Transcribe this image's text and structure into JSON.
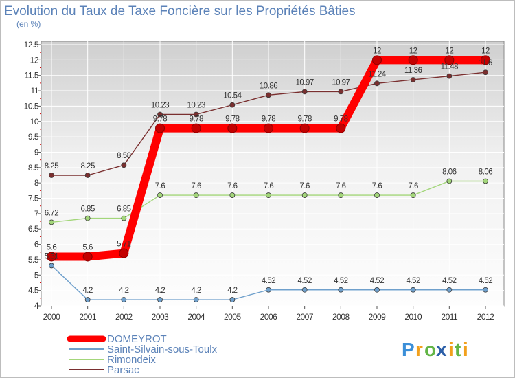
{
  "chart_data": {
    "type": "line",
    "title": "Evolution du Taux de Taxe Foncière sur les Propriétés Bâties",
    "subtitle": "(en %)",
    "x": [
      "2000",
      "2001",
      "2002",
      "2003",
      "2004",
      "2005",
      "2006",
      "2007",
      "2008",
      "2009",
      "2010",
      "2011",
      "2012"
    ],
    "y_ticks": [
      "4",
      "4.5",
      "5",
      "5.5",
      "6",
      "6.5",
      "7",
      "7.5",
      "8",
      "8.5",
      "9",
      "9.5",
      "10",
      "10.5",
      "11",
      "11.5",
      "12",
      "12.5"
    ],
    "ylim": [
      4,
      12.5
    ],
    "series": [
      {
        "name": "DOMEYROT",
        "color": "#ff0000",
        "values": [
          5.6,
          5.6,
          5.71,
          9.78,
          9.78,
          9.78,
          9.78,
          9.78,
          9.78,
          12,
          12,
          12,
          12
        ],
        "labels": [
          "5.6",
          "5.6",
          "5.71",
          "9.78",
          "9.78",
          "9.78",
          "9.78",
          "9.78",
          "9.78",
          "12",
          "12",
          "12",
          "12"
        ]
      },
      {
        "name": "Saint-Silvain-sous-Toulx",
        "color": "#6fa0cc",
        "values": [
          5.31,
          4.2,
          4.2,
          4.2,
          4.2,
          4.2,
          4.52,
          4.52,
          4.52,
          4.52,
          4.52,
          4.52,
          4.52
        ],
        "labels": [
          "5.31",
          "4.2",
          "4.2",
          "4.2",
          "4.2",
          "4.2",
          "4.52",
          "4.52",
          "4.52",
          "4.52",
          "4.52",
          "4.52",
          "4.52"
        ]
      },
      {
        "name": "Rimondeix",
        "color": "#a3d67a",
        "values": [
          6.72,
          6.85,
          6.85,
          7.6,
          7.6,
          7.6,
          7.6,
          7.6,
          7.6,
          7.6,
          7.6,
          8.06,
          8.06
        ],
        "labels": [
          "6.72",
          "6.85",
          "6.85",
          "7.6",
          "7.6",
          "7.6",
          "7.6",
          "7.6",
          "7.6",
          "7.6",
          "7.6",
          "8.06",
          "8.06"
        ]
      },
      {
        "name": "Parsac",
        "color": "#7a2f2f",
        "values": [
          8.25,
          8.25,
          8.58,
          10.23,
          10.23,
          10.54,
          10.86,
          10.97,
          10.97,
          11.24,
          11.36,
          11.48,
          11.6
        ],
        "labels": [
          "8.25",
          "8.25",
          "8.58",
          "10.23",
          "10.23",
          "10.54",
          "10.86",
          "10.97",
          "10.97",
          "11.24",
          "11.36",
          "11.48",
          "11.6"
        ]
      }
    ],
    "legend_placement": "bottom-left",
    "grid": true
  },
  "logo": {
    "letters": [
      "P",
      "r",
      "o",
      "x",
      "i",
      "t",
      "i"
    ],
    "colors": [
      "#3b8fd8",
      "#f2a01c",
      "#62b546",
      "#2c5fa8",
      "#f2a01c",
      "#62b546",
      "#f2a01c"
    ]
  }
}
